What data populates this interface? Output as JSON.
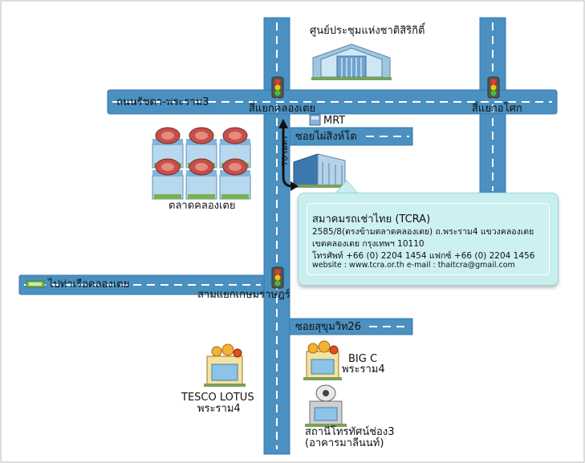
{
  "labels": {
    "national_library": "ศูนย์ประชุมแห่งชาติสิริกิติ์",
    "rd_ratchada_rama3": "ถนนรัชดา-พระราม3",
    "junction_khlong_toei": "สี่แยกคลองเตย",
    "junction_asoke": "สี่แยกอโศก",
    "mrt": "MRT",
    "soi_phai_sing_to": "ซอยไผ่สิงห์โต",
    "distance_70m": "70 เมตร",
    "khlong_toei_market": "ตลาดคลองเตย",
    "pier_khlong_toei": "ไปท่าเรือคลองเตย",
    "junction_kasem": "สามแยกเกษมราษฎร์",
    "soi_sukhumvit26": "ซอยสุขุมวิท26",
    "bigc_name": "BIG C",
    "bigc_branch": "พระราม4",
    "tesco_name": "TESCO LOTUS",
    "tesco_branch": "พระราม4",
    "channel3_name": "สถานีโทรทัศน์ช่อง3",
    "channel3_building": "(อาคารมาลีนนท์)"
  },
  "address": {
    "org": "สมาคมรถเช่าไทย (TCRA)",
    "line1": "2585/8(ตรงข้ามตลาดคลองเตย) ถ.พระราม4 แขวงคลองเตย",
    "line2": "เขตคลองเตย กรุงเทพฯ 10110",
    "phone": "โทรศัพท์ +66 (0) 2204 1454     แฟกซ์ +66 (0) 2204 1456",
    "web": "website : www.tcra.or.th  e-mail :  thaitcra@gmail.com"
  },
  "colors": {
    "road": "#4a90c0",
    "road_edge": "#3a7aab",
    "dash": "#ffffff",
    "callout_bg": "#c8eef0",
    "arrow": "#111111"
  }
}
